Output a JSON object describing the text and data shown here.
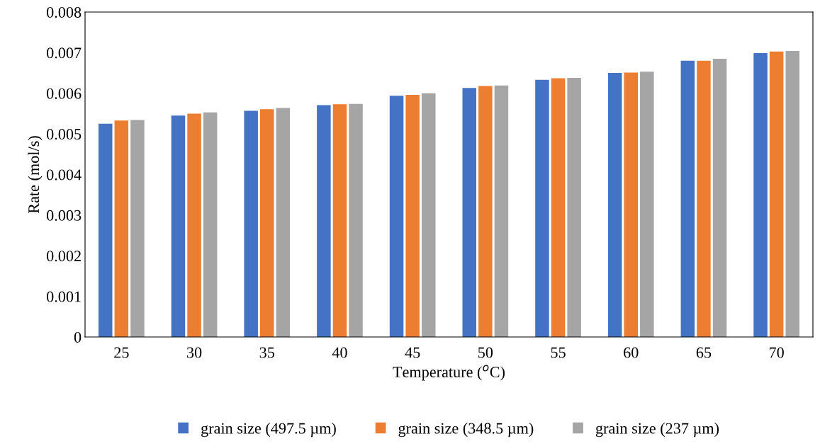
{
  "chart_data": {
    "type": "bar",
    "xlabel": "Temperature ($^{o}$C)",
    "ylabel": "Rate (mol/s)",
    "categories": [
      "25",
      "30",
      "35",
      "40",
      "45",
      "50",
      "55",
      "60",
      "65",
      "70"
    ],
    "series": [
      {
        "name": "grain size (497.5 µm)",
        "color": "#4472c4",
        "values": [
          0.00525,
          0.00545,
          0.00557,
          0.00571,
          0.00594,
          0.00613,
          0.00633,
          0.0065,
          0.0068,
          0.00699
        ]
      },
      {
        "name": "grain size (348.5 µm)",
        "color": "#ed7d31",
        "values": [
          0.00533,
          0.0055,
          0.00561,
          0.00573,
          0.00596,
          0.00618,
          0.00637,
          0.00651,
          0.0068,
          0.00703
        ]
      },
      {
        "name": "grain size (237 µm)",
        "color": "#a5a5a5",
        "values": [
          0.00534,
          0.00553,
          0.00564,
          0.00574,
          0.006,
          0.00619,
          0.00638,
          0.00653,
          0.00685,
          0.00704
        ]
      }
    ],
    "ylim": [
      0,
      0.008
    ],
    "yticks": [
      0,
      0.001,
      0.002,
      0.003,
      0.004,
      0.005,
      0.006,
      0.007,
      0.008
    ],
    "grid": false,
    "legend": "bottom"
  }
}
